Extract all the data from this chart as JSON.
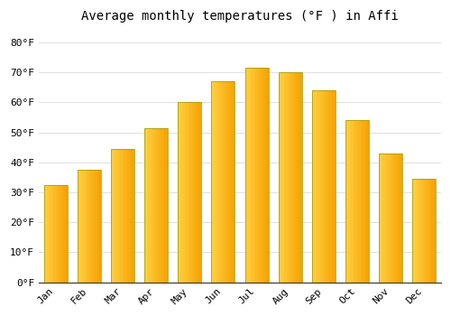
{
  "title": "Average monthly temperatures (°F ) in Affi",
  "months": [
    "Jan",
    "Feb",
    "Mar",
    "Apr",
    "May",
    "Jun",
    "Jul",
    "Aug",
    "Sep",
    "Oct",
    "Nov",
    "Dec"
  ],
  "values": [
    32.5,
    37.5,
    44.5,
    51.5,
    60.0,
    67.0,
    71.5,
    70.0,
    64.0,
    54.0,
    43.0,
    34.5
  ],
  "bar_color_left": "#FFD040",
  "bar_color_right": "#F5A000",
  "bar_edge_color": "#888800",
  "background_color": "#FFFFFF",
  "grid_color": "#E0E0E0",
  "ylim": [
    0,
    85
  ],
  "yticks": [
    0,
    10,
    20,
    30,
    40,
    50,
    60,
    70,
    80
  ],
  "title_fontsize": 10,
  "tick_fontsize": 8,
  "font_family": "monospace"
}
